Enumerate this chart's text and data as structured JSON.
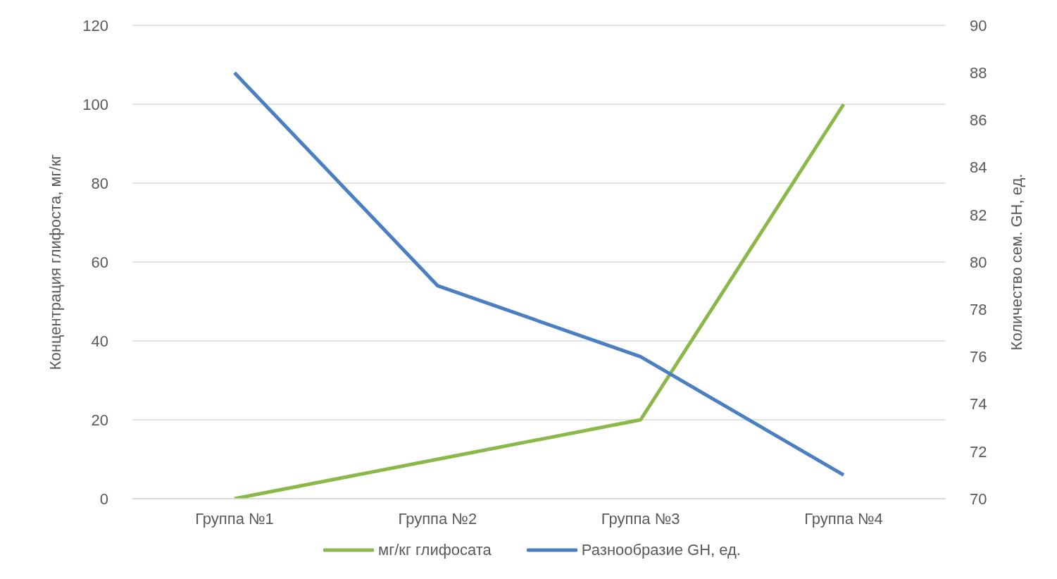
{
  "chart_data": {
    "type": "line",
    "categories": [
      "Группа №1",
      "Группа №2",
      "Группа №3",
      "Группа №4"
    ],
    "series": [
      {
        "name": "мг/кг глифосата",
        "color": "#8cb84a",
        "values": [
          0,
          10,
          20,
          100
        ]
      },
      {
        "name": "Разнообразие GH, ед.",
        "color": "#4a7fc1",
        "values": [
          88,
          79,
          76,
          71
        ],
        "axis": "y2"
      }
    ],
    "ylabel": "Концентрация глифоста, мг/кг",
    "y2label": "Количество сем. GH, ед.",
    "ylim": [
      0,
      120
    ],
    "yticks": [
      0,
      20,
      40,
      60,
      80,
      100,
      120
    ],
    "y2lim": [
      70,
      90
    ],
    "y2ticks": [
      70,
      72,
      74,
      76,
      78,
      80,
      82,
      84,
      86,
      88,
      90
    ],
    "grid": "y",
    "legend": "bottom",
    "marker": "none",
    "line_style": "solid"
  }
}
